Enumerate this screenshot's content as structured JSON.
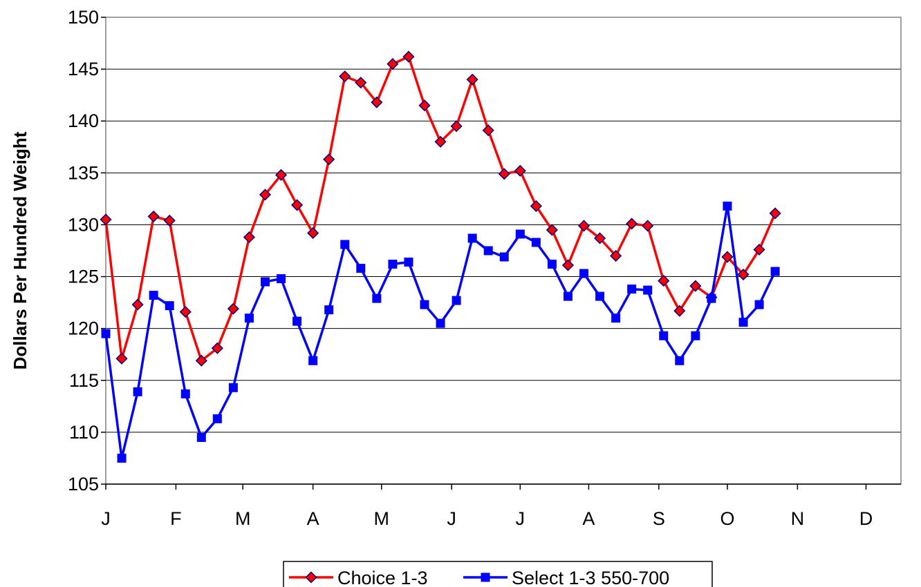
{
  "chart_data": {
    "type": "line",
    "title": "",
    "xlabel": "",
    "ylabel": "Dollars Per Hundred Weight",
    "ylim": [
      105,
      150
    ],
    "yticks": [
      105,
      110,
      115,
      120,
      125,
      130,
      135,
      140,
      145,
      150
    ],
    "month_labels": [
      "J",
      "F",
      "M",
      "A",
      "M",
      "J",
      "J",
      "A",
      "S",
      "O",
      "N",
      "D"
    ],
    "x_unit": "week of year",
    "x": [
      1,
      2,
      3,
      4,
      5,
      6,
      7,
      8,
      9,
      10,
      11,
      12,
      13,
      14,
      15,
      16,
      17,
      18,
      19,
      20,
      21,
      22,
      23,
      24,
      25,
      26,
      27,
      28,
      29,
      30,
      31,
      32,
      33,
      34,
      35,
      36,
      37,
      38,
      39,
      40,
      41,
      42,
      43
    ],
    "grid": true,
    "legend_position": "bottom",
    "series": [
      {
        "name": "Choice 1-3",
        "color": "#ff0000",
        "marker": "diamond",
        "marker_color": "#ff0000",
        "values": [
          130.5,
          117.1,
          122.3,
          130.8,
          130.4,
          121.6,
          116.9,
          118.1,
          121.9,
          128.8,
          132.9,
          134.8,
          131.9,
          129.2,
          136.3,
          144.3,
          143.7,
          141.8,
          145.5,
          146.2,
          141.5,
          138.0,
          139.5,
          144.0,
          139.1,
          134.9,
          135.2,
          131.8,
          129.5,
          126.1,
          129.9,
          128.7,
          127.0,
          130.1,
          129.9,
          124.6,
          121.7,
          124.1,
          123.0,
          126.9,
          125.2,
          127.6,
          131.1
        ]
      },
      {
        "name": "Select 1-3 550-700",
        "color": "#0000ff",
        "marker": "square",
        "marker_color": "#0000ff",
        "values": [
          119.5,
          107.5,
          113.9,
          123.2,
          122.2,
          113.7,
          109.5,
          111.3,
          114.3,
          121.0,
          124.5,
          124.8,
          120.7,
          116.9,
          121.8,
          128.1,
          125.8,
          122.9,
          126.2,
          126.4,
          122.3,
          120.5,
          122.7,
          128.7,
          127.5,
          126.9,
          129.1,
          128.3,
          126.2,
          123.1,
          125.3,
          123.1,
          121.0,
          123.8,
          123.7,
          119.3,
          116.9,
          119.3,
          122.9,
          131.8,
          120.6,
          122.3,
          125.5
        ]
      }
    ]
  }
}
